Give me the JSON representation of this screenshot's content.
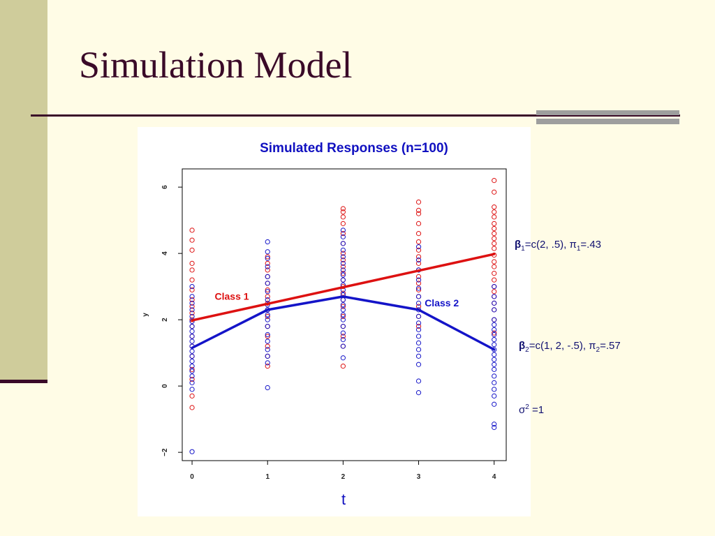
{
  "slide": {
    "title": "Simulation Model"
  },
  "params": {
    "beta1_sym": "β",
    "beta1_sub": "1",
    "beta1_val": "=c(2, .5), π",
    "pi1_sub": "1",
    "pi1_val": "=.43",
    "beta2_sym": "β",
    "beta2_sub": "2",
    "beta2_val": "=c(1, 2, -.5), π",
    "pi2_sub": "2",
    "pi2_val": "=.57",
    "sigma_sym": "σ",
    "sigma_sup": "2",
    "sigma_val": " =1"
  },
  "colors": {
    "class1": "#dd1111",
    "class2": "#1414c8",
    "title_text": "#3a0a28",
    "chart_title": "#1010c0"
  },
  "chart_data": {
    "type": "scatter",
    "title": "Simulated Responses (n=100)",
    "xlabel": "t",
    "ylabel": "y",
    "xlim": [
      -0.13,
      4.16
    ],
    "ylim": [
      -2.25,
      6.55
    ],
    "x_ticks": [
      0,
      1,
      2,
      3,
      4
    ],
    "y_ticks": [
      -2,
      0,
      2,
      4,
      6
    ],
    "grid": false,
    "series": [
      {
        "name": "Class 1",
        "role": "points",
        "color": "#dd1111",
        "points": [
          [
            0,
            4.7
          ],
          [
            0,
            4.4
          ],
          [
            0,
            4.1
          ],
          [
            0,
            3.7
          ],
          [
            0,
            3.5
          ],
          [
            0,
            3.2
          ],
          [
            0,
            2.9
          ],
          [
            0,
            2.6
          ],
          [
            0,
            2.4
          ],
          [
            0,
            2.2
          ],
          [
            0,
            2.0
          ],
          [
            0,
            1.8
          ],
          [
            0,
            1.5
          ],
          [
            0,
            1.2
          ],
          [
            0,
            0.9
          ],
          [
            0,
            0.5
          ],
          [
            0,
            0.2
          ],
          [
            0,
            -0.3
          ],
          [
            0,
            -0.65
          ],
          [
            1,
            3.9
          ],
          [
            1,
            3.7
          ],
          [
            1,
            3.5
          ],
          [
            1,
            3.3
          ],
          [
            1,
            3.1
          ],
          [
            1,
            2.9
          ],
          [
            1,
            2.7
          ],
          [
            1,
            2.5
          ],
          [
            1,
            2.3
          ],
          [
            1,
            2.1
          ],
          [
            1,
            1.8
          ],
          [
            1,
            1.5
          ],
          [
            1,
            1.2
          ],
          [
            1,
            0.9
          ],
          [
            1,
            0.6
          ],
          [
            2,
            5.35
          ],
          [
            2,
            5.25
          ],
          [
            2,
            5.1
          ],
          [
            2,
            4.9
          ],
          [
            2,
            4.6
          ],
          [
            2,
            4.3
          ],
          [
            2,
            4.0
          ],
          [
            2,
            3.8
          ],
          [
            2,
            3.6
          ],
          [
            2,
            3.4
          ],
          [
            2,
            3.2
          ],
          [
            2,
            3.0
          ],
          [
            2,
            2.8
          ],
          [
            2,
            2.6
          ],
          [
            2,
            2.4
          ],
          [
            2,
            2.1
          ],
          [
            2,
            1.8
          ],
          [
            2,
            1.5
          ],
          [
            2,
            1.2
          ],
          [
            2,
            0.6
          ],
          [
            3,
            5.55
          ],
          [
            3,
            5.3
          ],
          [
            3,
            5.2
          ],
          [
            3,
            4.9
          ],
          [
            3,
            4.6
          ],
          [
            3,
            4.35
          ],
          [
            3,
            4.1
          ],
          [
            3,
            3.9
          ],
          [
            3,
            3.7
          ],
          [
            3,
            3.5
          ],
          [
            3,
            3.3
          ],
          [
            3,
            3.1
          ],
          [
            3,
            2.9
          ],
          [
            3,
            2.7
          ],
          [
            3,
            2.4
          ],
          [
            3,
            2.1
          ],
          [
            3,
            1.8
          ],
          [
            4,
            6.2
          ],
          [
            4,
            5.85
          ],
          [
            4,
            5.4
          ],
          [
            4,
            5.25
          ],
          [
            4,
            5.1
          ],
          [
            4,
            4.9
          ],
          [
            4,
            4.75
          ],
          [
            4,
            4.6
          ],
          [
            4,
            4.45
          ],
          [
            4,
            4.3
          ],
          [
            4,
            4.15
          ],
          [
            4,
            3.95
          ],
          [
            4,
            3.75
          ],
          [
            4,
            3.6
          ],
          [
            4,
            3.4
          ],
          [
            4,
            3.2
          ],
          [
            4,
            3.0
          ],
          [
            4,
            2.85
          ],
          [
            4,
            2.7
          ],
          [
            4,
            2.5
          ],
          [
            4,
            2.3
          ],
          [
            4,
            2.0
          ],
          [
            4,
            1.6
          ]
        ]
      },
      {
        "name": "Class 2",
        "role": "points",
        "color": "#1414c8",
        "points": [
          [
            0,
            3.0
          ],
          [
            0,
            2.7
          ],
          [
            0,
            2.5
          ],
          [
            0,
            2.3
          ],
          [
            0,
            2.1
          ],
          [
            0,
            1.95
          ],
          [
            0,
            1.8
          ],
          [
            0,
            1.65
          ],
          [
            0,
            1.5
          ],
          [
            0,
            1.35
          ],
          [
            0,
            1.2
          ],
          [
            0,
            1.05
          ],
          [
            0,
            0.9
          ],
          [
            0,
            0.75
          ],
          [
            0,
            0.6
          ],
          [
            0,
            0.45
          ],
          [
            0,
            0.3
          ],
          [
            0,
            0.1
          ],
          [
            0,
            -0.1
          ],
          [
            0,
            -1.98
          ],
          [
            1,
            4.35
          ],
          [
            1,
            4.05
          ],
          [
            1,
            3.85
          ],
          [
            1,
            3.6
          ],
          [
            1,
            3.3
          ],
          [
            1,
            3.1
          ],
          [
            1,
            2.85
          ],
          [
            1,
            2.6
          ],
          [
            1,
            2.45
          ],
          [
            1,
            2.3
          ],
          [
            1,
            2.15
          ],
          [
            1,
            2.0
          ],
          [
            1,
            1.8
          ],
          [
            1,
            1.55
          ],
          [
            1,
            1.35
          ],
          [
            1,
            1.1
          ],
          [
            1,
            0.9
          ],
          [
            1,
            0.7
          ],
          [
            1,
            -0.05
          ],
          [
            2,
            4.7
          ],
          [
            2,
            4.5
          ],
          [
            2,
            4.3
          ],
          [
            2,
            4.1
          ],
          [
            2,
            3.9
          ],
          [
            2,
            3.7
          ],
          [
            2,
            3.5
          ],
          [
            2,
            3.35
          ],
          [
            2,
            3.2
          ],
          [
            2,
            3.05
          ],
          [
            2,
            2.9
          ],
          [
            2,
            2.75
          ],
          [
            2,
            2.6
          ],
          [
            2,
            2.45
          ],
          [
            2,
            2.3
          ],
          [
            2,
            2.15
          ],
          [
            2,
            2.0
          ],
          [
            2,
            1.8
          ],
          [
            2,
            1.6
          ],
          [
            2,
            1.4
          ],
          [
            2,
            1.2
          ],
          [
            2,
            0.85
          ],
          [
            3,
            4.2
          ],
          [
            3,
            3.8
          ],
          [
            3,
            3.5
          ],
          [
            3,
            3.2
          ],
          [
            3,
            2.95
          ],
          [
            3,
            2.7
          ],
          [
            3,
            2.5
          ],
          [
            3,
            2.3
          ],
          [
            3,
            2.1
          ],
          [
            3,
            1.9
          ],
          [
            3,
            1.7
          ],
          [
            3,
            1.5
          ],
          [
            3,
            1.3
          ],
          [
            3,
            1.1
          ],
          [
            3,
            0.9
          ],
          [
            3,
            0.65
          ],
          [
            3,
            0.15
          ],
          [
            3,
            -0.2
          ],
          [
            4,
            3.0
          ],
          [
            4,
            2.7
          ],
          [
            4,
            2.5
          ],
          [
            4,
            2.3
          ],
          [
            4,
            2.0
          ],
          [
            4,
            1.85
          ],
          [
            4,
            1.7
          ],
          [
            4,
            1.55
          ],
          [
            4,
            1.4
          ],
          [
            4,
            1.25
          ],
          [
            4,
            1.1
          ],
          [
            4,
            0.95
          ],
          [
            4,
            0.8
          ],
          [
            4,
            0.65
          ],
          [
            4,
            0.5
          ],
          [
            4,
            0.3
          ],
          [
            4,
            0.1
          ],
          [
            4,
            -0.1
          ],
          [
            4,
            -0.3
          ],
          [
            4,
            -0.55
          ],
          [
            4,
            -1.15
          ],
          [
            4,
            -1.25
          ]
        ]
      },
      {
        "name": "Class 1",
        "role": "line",
        "color": "#dd1111",
        "x": [
          0,
          1,
          2,
          3,
          4
        ],
        "y": [
          1.98,
          2.48,
          2.98,
          3.48,
          3.98
        ]
      },
      {
        "name": "Class 2",
        "role": "line",
        "color": "#1414c8",
        "x": [
          0,
          1,
          2,
          3,
          4
        ],
        "y": [
          1.15,
          2.3,
          2.7,
          2.3,
          1.1
        ]
      }
    ],
    "annotations": [
      {
        "text": "Class 1",
        "color": "#dd1111",
        "x": 0.3,
        "y": 2.6
      },
      {
        "text": "Class 2",
        "color": "#1414c8",
        "x": 3.08,
        "y": 2.4
      }
    ]
  }
}
